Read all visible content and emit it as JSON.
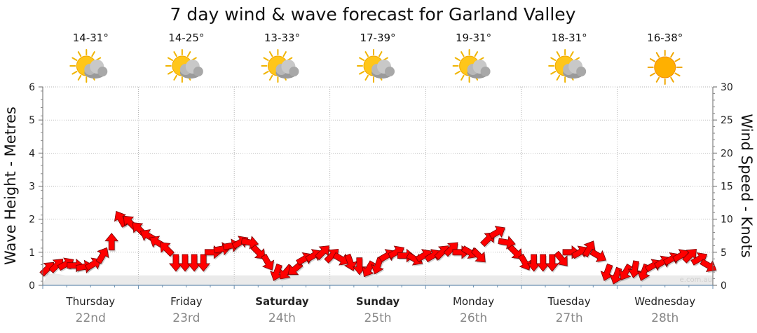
{
  "chart_data": {
    "type": "line",
    "title": "7 day wind & wave forecast for Garland Valley",
    "ylabel_left": "Wave Height - Metres",
    "ylabel_right": "Wind Speed - Knots",
    "ylim_left": [
      0,
      6
    ],
    "ylim_right": [
      0,
      30
    ],
    "yticks_left": [
      "0",
      "1",
      "2",
      "3",
      "4",
      "5",
      "6"
    ],
    "yticks_right": [
      "0",
      "5",
      "10",
      "15",
      "20",
      "25",
      "30"
    ],
    "grid": true,
    "watermark": "e.com.au",
    "days": [
      {
        "name": "Thursday",
        "date": "22nd",
        "temp": "14-31°",
        "icon": "partly-cloudy-icon",
        "bold": false
      },
      {
        "name": "Friday",
        "date": "23rd",
        "temp": "14-25°",
        "icon": "partly-cloudy-icon",
        "bold": false
      },
      {
        "name": "Saturday",
        "date": "24th",
        "temp": "13-33°",
        "icon": "partly-cloudy-icon",
        "bold": true
      },
      {
        "name": "Sunday",
        "date": "25th",
        "temp": "17-39°",
        "icon": "partly-cloudy-icon",
        "bold": true
      },
      {
        "name": "Monday",
        "date": "26th",
        "temp": "19-31°",
        "icon": "partly-cloudy-icon",
        "bold": false
      },
      {
        "name": "Tuesday",
        "date": "27th",
        "temp": "18-31°",
        "icon": "partly-cloudy-icon",
        "bold": false
      },
      {
        "name": "Wednesday",
        "date": "28th",
        "temp": "16-38°",
        "icon": "sunny-icon",
        "bold": false
      }
    ],
    "series": [
      {
        "name": "Wind Speed",
        "unit": "knots",
        "color": "#ff0000",
        "values": [
          2.5,
          3.0,
          3.2,
          3.0,
          2.8,
          3.2,
          4.5,
          6.5,
          10.0,
          9.5,
          8.5,
          7.5,
          6.5,
          5.5,
          3.5,
          3.5,
          3.5,
          3.5,
          5.0,
          5.5,
          6.0,
          6.5,
          6.5,
          5.0,
          3.5,
          2.0,
          2.0,
          2.5,
          4.0,
          4.5,
          5.0,
          4.5,
          4.0,
          3.5,
          3.0,
          2.5,
          3.0,
          4.5,
          5.0,
          4.5,
          4.0,
          4.5,
          4.5,
          5.0,
          5.5,
          5.0,
          5.0,
          4.5,
          7.0,
          8.0,
          6.5,
          5.0,
          3.5,
          3.5,
          3.5,
          3.5,
          4.0,
          5.0,
          5.0,
          5.5,
          4.5,
          2.0,
          1.5,
          2.0,
          2.5,
          2.0,
          3.0,
          3.5,
          4.0,
          4.5,
          4.5,
          4.0,
          3.0
        ]
      },
      {
        "name": "Wind Direction",
        "unit": "degrees-to",
        "color": "#ff0000",
        "values": [
          45,
          45,
          60,
          90,
          80,
          60,
          30,
          0,
          330,
          315,
          315,
          300,
          300,
          315,
          180,
          180,
          180,
          180,
          90,
          80,
          80,
          60,
          100,
          135,
          150,
          200,
          220,
          230,
          60,
          60,
          45,
          45,
          120,
          160,
          180,
          210,
          200,
          60,
          60,
          90,
          120,
          60,
          60,
          45,
          45,
          90,
          120,
          135,
          45,
          60,
          100,
          135,
          150,
          180,
          180,
          180,
          140,
          90,
          60,
          30,
          120,
          200,
          200,
          210,
          190,
          200,
          60,
          60,
          60,
          60,
          45,
          60,
          120
        ]
      },
      {
        "name": "Wave Height",
        "unit": "metres",
        "color": "#c8c8c8",
        "values": [
          0.35,
          0.35,
          0.3,
          0.3,
          0.3,
          0.3,
          0.3,
          0.3,
          0.3,
          0.3,
          0.3,
          0.3,
          0.3,
          0.3,
          0.3,
          0.3,
          0.3,
          0.3,
          0.3,
          0.3,
          0.3,
          0.3,
          0.3,
          0.3,
          0.3,
          0.3,
          0.3,
          0.3,
          0.3,
          0.3,
          0.3,
          0.3,
          0.3,
          0.3,
          0.3,
          0.3,
          0.3,
          0.3,
          0.3,
          0.3,
          0.3,
          0.3,
          0.3,
          0.3,
          0.3,
          0.3,
          0.3,
          0.3,
          0.3,
          0.3,
          0.3,
          0.3,
          0.3,
          0.3,
          0.3,
          0.3,
          0.3,
          0.3,
          0.3,
          0.3,
          0.3,
          0.3,
          0.3,
          0.3,
          0.3,
          0.3,
          0.3,
          0.3,
          0.3,
          0.3,
          0.3,
          0.3,
          0.3
        ]
      }
    ]
  }
}
